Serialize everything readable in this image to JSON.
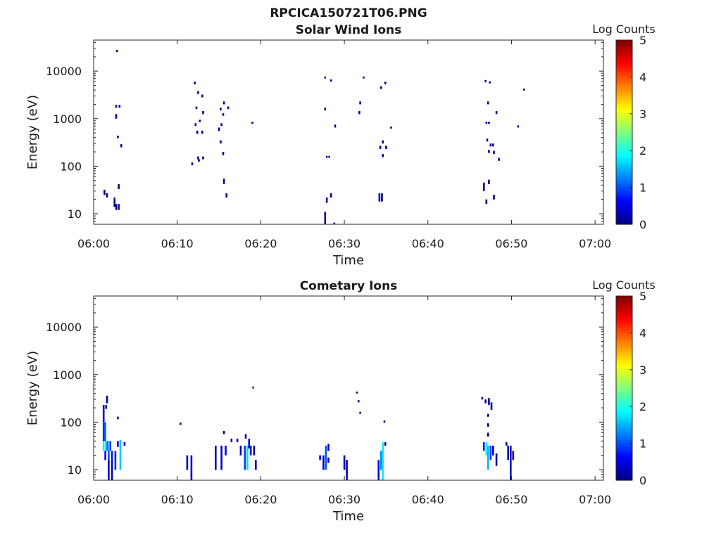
{
  "figure_title": "RPCICA150721T06.PNG",
  "chart_data": [
    {
      "type": "heatmap",
      "title": "Solar Wind Ions",
      "xlabel": "Time",
      "ylabel": "Energy (eV)",
      "y_scale": "log",
      "xlim": [
        "06:00",
        "07:01"
      ],
      "ylim": [
        6,
        45000
      ],
      "x_ticks": [
        "06:00",
        "06:10",
        "06:20",
        "06:30",
        "06:40",
        "06:50",
        "07:00"
      ],
      "y_ticks": [
        "10",
        "100",
        "1000",
        "10000"
      ],
      "colorbar": {
        "label": "Log Counts",
        "range": [
          0,
          5
        ],
        "ticks": [
          "0",
          "1",
          "2",
          "3",
          "4",
          "5"
        ],
        "colormap": "jet"
      },
      "points": [
        {
          "t": 1.3,
          "e0": 25,
          "e1": 32,
          "v": 0.1
        },
        {
          "t": 1.6,
          "e0": 22,
          "e1": 27,
          "v": 0.1
        },
        {
          "t": 2.5,
          "e0": 14,
          "e1": 22,
          "v": 0.1
        },
        {
          "t": 2.7,
          "e0": 12,
          "e1": 16,
          "v": 0.1
        },
        {
          "t": 3.0,
          "e0": 12,
          "e1": 16,
          "v": 0.1
        },
        {
          "t": 3.0,
          "e0": 33,
          "e1": 42,
          "v": 0.1
        },
        {
          "t": 2.8,
          "e0": 25000,
          "e1": 28000,
          "v": 0.1
        },
        {
          "t": 2.7,
          "e0": 1700,
          "e1": 1950,
          "v": 0.1
        },
        {
          "t": 3.1,
          "e0": 1700,
          "e1": 1950,
          "v": 0.1
        },
        {
          "t": 2.7,
          "e0": 1000,
          "e1": 1250,
          "v": 0.1
        },
        {
          "t": 2.9,
          "e0": 390,
          "e1": 440,
          "v": 0.1
        },
        {
          "t": 3.3,
          "e0": 250,
          "e1": 290,
          "v": 0.1
        },
        {
          "t": 11.8,
          "e0": 105,
          "e1": 120,
          "v": 0.1
        },
        {
          "t": 12.1,
          "e0": 5300,
          "e1": 6000,
          "v": 0.1
        },
        {
          "t": 12.5,
          "e0": 3300,
          "e1": 3800,
          "v": 0.1
        },
        {
          "t": 13.0,
          "e0": 2800,
          "e1": 3200,
          "v": 0.1
        },
        {
          "t": 12.3,
          "e0": 1600,
          "e1": 1800,
          "v": 0.1
        },
        {
          "t": 13.1,
          "e0": 1250,
          "e1": 1450,
          "v": 0.1
        },
        {
          "t": 12.2,
          "e0": 700,
          "e1": 800,
          "v": 0.1
        },
        {
          "t": 12.7,
          "e0": 850,
          "e1": 950,
          "v": 0.1
        },
        {
          "t": 12.4,
          "e0": 480,
          "e1": 560,
          "v": 0.1
        },
        {
          "t": 13.0,
          "e0": 480,
          "e1": 560,
          "v": 0.1
        },
        {
          "t": 12.5,
          "e0": 140,
          "e1": 160,
          "v": 0.1
        },
        {
          "t": 12.6,
          "e0": 125,
          "e1": 140,
          "v": 0.1
        },
        {
          "t": 13.1,
          "e0": 140,
          "e1": 160,
          "v": 0.1
        },
        {
          "t": 15.2,
          "e0": 1500,
          "e1": 1700,
          "v": 0.1
        },
        {
          "t": 15.6,
          "e0": 2000,
          "e1": 2300,
          "v": 0.1
        },
        {
          "t": 16.1,
          "e0": 1600,
          "e1": 1800,
          "v": 0.1
        },
        {
          "t": 15.5,
          "e0": 1150,
          "e1": 1300,
          "v": 0.1
        },
        {
          "t": 15.3,
          "e0": 700,
          "e1": 800,
          "v": 0.1
        },
        {
          "t": 15.0,
          "e0": 550,
          "e1": 650,
          "v": 0.1
        },
        {
          "t": 15.2,
          "e0": 300,
          "e1": 350,
          "v": 0.1
        },
        {
          "t": 15.5,
          "e0": 170,
          "e1": 200,
          "v": 0.1
        },
        {
          "t": 15.6,
          "e0": 42,
          "e1": 55,
          "v": 0.1
        },
        {
          "t": 15.9,
          "e0": 22,
          "e1": 27,
          "v": 0.1
        },
        {
          "t": 19.0,
          "e0": 780,
          "e1": 860,
          "v": 0.1
        },
        {
          "t": 27.7,
          "e0": 6,
          "e1": 11,
          "v": 0.1
        },
        {
          "t": 27.9,
          "e0": 17,
          "e1": 22,
          "v": 0.1
        },
        {
          "t": 28.4,
          "e0": 22,
          "e1": 27,
          "v": 0.1
        },
        {
          "t": 28.8,
          "e0": 6,
          "e1": 6.5,
          "v": 0.1
        },
        {
          "t": 27.9,
          "e0": 150,
          "e1": 165,
          "v": 0.1
        },
        {
          "t": 28.2,
          "e0": 150,
          "e1": 165,
          "v": 0.1
        },
        {
          "t": 27.7,
          "e0": 1500,
          "e1": 1700,
          "v": 0.1
        },
        {
          "t": 27.7,
          "e0": 7000,
          "e1": 7700,
          "v": 0.1
        },
        {
          "t": 28.4,
          "e0": 6000,
          "e1": 6700,
          "v": 0.1
        },
        {
          "t": 28.9,
          "e0": 650,
          "e1": 750,
          "v": 0.1
        },
        {
          "t": 32.3,
          "e0": 7000,
          "e1": 7700,
          "v": 0.1
        },
        {
          "t": 31.9,
          "e0": 2000,
          "e1": 2300,
          "v": 0.1
        },
        {
          "t": 31.8,
          "e0": 1250,
          "e1": 1450,
          "v": 0.1
        },
        {
          "t": 34.2,
          "e0": 18,
          "e1": 27,
          "v": 0.1
        },
        {
          "t": 34.5,
          "e0": 18,
          "e1": 27,
          "v": 0.1
        },
        {
          "t": 34.4,
          "e0": 4200,
          "e1": 4800,
          "v": 0.1
        },
        {
          "t": 34.9,
          "e0": 5300,
          "e1": 6000,
          "v": 0.1
        },
        {
          "t": 34.6,
          "e0": 300,
          "e1": 350,
          "v": 0.1
        },
        {
          "t": 34.3,
          "e0": 230,
          "e1": 270,
          "v": 0.1
        },
        {
          "t": 35.0,
          "e0": 230,
          "e1": 270,
          "v": 0.1
        },
        {
          "t": 34.6,
          "e0": 155,
          "e1": 180,
          "v": 0.1
        },
        {
          "t": 35.6,
          "e0": 620,
          "e1": 680,
          "v": 0.1
        },
        {
          "t": 46.7,
          "e0": 30,
          "e1": 45,
          "v": 0.1
        },
        {
          "t": 47.0,
          "e0": 16,
          "e1": 20,
          "v": 0.1
        },
        {
          "t": 47.3,
          "e0": 42,
          "e1": 52,
          "v": 0.1
        },
        {
          "t": 47.9,
          "e0": 20,
          "e1": 25,
          "v": 0.1
        },
        {
          "t": 46.9,
          "e0": 5800,
          "e1": 6500,
          "v": 0.1
        },
        {
          "t": 47.4,
          "e0": 5500,
          "e1": 6100,
          "v": 0.1
        },
        {
          "t": 47.2,
          "e0": 2000,
          "e1": 2300,
          "v": 0.1
        },
        {
          "t": 47.0,
          "e0": 780,
          "e1": 860,
          "v": 0.1
        },
        {
          "t": 47.3,
          "e0": 780,
          "e1": 860,
          "v": 0.1
        },
        {
          "t": 48.2,
          "e0": 1250,
          "e1": 1450,
          "v": 0.1
        },
        {
          "t": 47.1,
          "e0": 330,
          "e1": 380,
          "v": 0.1
        },
        {
          "t": 47.5,
          "e0": 260,
          "e1": 300,
          "v": 0.1
        },
        {
          "t": 47.8,
          "e0": 260,
          "e1": 300,
          "v": 0.1
        },
        {
          "t": 47.3,
          "e0": 190,
          "e1": 220,
          "v": 0.1
        },
        {
          "t": 47.9,
          "e0": 180,
          "e1": 210,
          "v": 0.1
        },
        {
          "t": 48.5,
          "e0": 130,
          "e1": 150,
          "v": 0.1
        },
        {
          "t": 50.8,
          "e0": 650,
          "e1": 720,
          "v": 0.1
        },
        {
          "t": 51.5,
          "e0": 3900,
          "e1": 4300,
          "v": 0.1
        }
      ]
    },
    {
      "type": "heatmap",
      "title": "Cometary Ions",
      "xlabel": "Time",
      "ylabel": "Energy (eV)",
      "y_scale": "log",
      "xlim": [
        "06:00",
        "07:01"
      ],
      "ylim": [
        6,
        45000
      ],
      "x_ticks": [
        "06:00",
        "06:10",
        "06:20",
        "06:30",
        "06:40",
        "06:50",
        "07:00"
      ],
      "y_ticks": [
        "10",
        "100",
        "1000",
        "10000"
      ],
      "colorbar": {
        "label": "Log Counts",
        "range": [
          0,
          5
        ],
        "ticks": [
          "0",
          "1",
          "2",
          "3",
          "4",
          "5"
        ],
        "colormap": "jet"
      },
      "points": [
        {
          "t": 1.2,
          "e0": 190,
          "e1": 230,
          "v": 0.2
        },
        {
          "t": 1.5,
          "e0": 190,
          "e1": 230,
          "v": 0.2
        },
        {
          "t": 1.6,
          "e0": 250,
          "e1": 360,
          "v": 0.2
        },
        {
          "t": 1.2,
          "e0": 100,
          "e1": 190,
          "v": 0.5
        },
        {
          "t": 1.2,
          "e0": 40,
          "e1": 100,
          "v": 0.8
        },
        {
          "t": 1.4,
          "e0": 40,
          "e1": 100,
          "v": 1.2
        },
        {
          "t": 1.2,
          "e0": 25,
          "e1": 40,
          "v": 1.8
        },
        {
          "t": 1.5,
          "e0": 25,
          "e1": 40,
          "v": 1.5
        },
        {
          "t": 1.7,
          "e0": 25,
          "e1": 40,
          "v": 1.2
        },
        {
          "t": 2.0,
          "e0": 25,
          "e1": 40,
          "v": 0.9
        },
        {
          "t": 1.4,
          "e0": 16,
          "e1": 25,
          "v": 0.6
        },
        {
          "t": 1.8,
          "e0": 16,
          "e1": 25,
          "v": 1.0
        },
        {
          "t": 2.2,
          "e0": 16,
          "e1": 25,
          "v": 0.7
        },
        {
          "t": 1.8,
          "e0": 6,
          "e1": 16,
          "v": 0.4
        },
        {
          "t": 2.2,
          "e0": 6,
          "e1": 16,
          "v": 0.3
        },
        {
          "t": 2.6,
          "e0": 10,
          "e1": 25,
          "v": 0.8
        },
        {
          "t": 2.9,
          "e0": 30,
          "e1": 40,
          "v": 0.5
        },
        {
          "t": 3.2,
          "e0": 10,
          "e1": 42,
          "v": 1.6
        },
        {
          "t": 3.7,
          "e0": 32,
          "e1": 38,
          "v": 0.3
        },
        {
          "t": 2.9,
          "e0": 115,
          "e1": 130,
          "v": 0.1
        },
        {
          "t": 10.4,
          "e0": 88,
          "e1": 98,
          "v": 0.1
        },
        {
          "t": 11.2,
          "e0": 10,
          "e1": 20,
          "v": 0.2
        },
        {
          "t": 11.7,
          "e0": 6,
          "e1": 20,
          "v": 0.4
        },
        {
          "t": 14.6,
          "e0": 10,
          "e1": 32,
          "v": 0.3
        },
        {
          "t": 15.3,
          "e0": 10,
          "e1": 32,
          "v": 0.4
        },
        {
          "t": 15.8,
          "e0": 20,
          "e1": 32,
          "v": 0.6
        },
        {
          "t": 15.6,
          "e0": 56,
          "e1": 65,
          "v": 0.1
        },
        {
          "t": 16.5,
          "e0": 38,
          "e1": 45,
          "v": 0.2
        },
        {
          "t": 17.2,
          "e0": 38,
          "e1": 45,
          "v": 0.2
        },
        {
          "t": 17.6,
          "e0": 20,
          "e1": 32,
          "v": 0.3
        },
        {
          "t": 18.1,
          "e0": 10,
          "e1": 32,
          "v": 0.9
        },
        {
          "t": 18.4,
          "e0": 10,
          "e1": 32,
          "v": 1.7
        },
        {
          "t": 18.6,
          "e0": 28,
          "e1": 45,
          "v": 0.5
        },
        {
          "t": 18.8,
          "e0": 20,
          "e1": 32,
          "v": 0.3
        },
        {
          "t": 19.2,
          "e0": 20,
          "e1": 32,
          "v": 0.2
        },
        {
          "t": 18.2,
          "e0": 45,
          "e1": 56,
          "v": 0.2
        },
        {
          "t": 19.4,
          "e0": 10,
          "e1": 16,
          "v": 0.2
        },
        {
          "t": 19.1,
          "e0": 510,
          "e1": 560,
          "v": 0.1
        },
        {
          "t": 27.1,
          "e0": 16,
          "e1": 20,
          "v": 0.3
        },
        {
          "t": 27.5,
          "e0": 10,
          "e1": 20,
          "v": 0.4
        },
        {
          "t": 27.8,
          "e0": 10,
          "e1": 32,
          "v": 1.0
        },
        {
          "t": 28.1,
          "e0": 25,
          "e1": 35,
          "v": 0.4
        },
        {
          "t": 28.1,
          "e0": 14,
          "e1": 18,
          "v": 0.2
        },
        {
          "t": 30.0,
          "e0": 10,
          "e1": 20,
          "v": 0.2
        },
        {
          "t": 30.3,
          "e0": 6,
          "e1": 16,
          "v": 0.3
        },
        {
          "t": 31.5,
          "e0": 400,
          "e1": 440,
          "v": 0.1
        },
        {
          "t": 31.7,
          "e0": 260,
          "e1": 290,
          "v": 0.1
        },
        {
          "t": 31.9,
          "e0": 150,
          "e1": 165,
          "v": 0.1
        },
        {
          "t": 34.1,
          "e0": 6,
          "e1": 16,
          "v": 0.5
        },
        {
          "t": 34.4,
          "e0": 10,
          "e1": 25,
          "v": 1.3
        },
        {
          "t": 34.6,
          "e0": 6,
          "e1": 38,
          "v": 1.8
        },
        {
          "t": 34.9,
          "e0": 32,
          "e1": 38,
          "v": 0.2
        },
        {
          "t": 34.8,
          "e0": 98,
          "e1": 108,
          "v": 0.1
        },
        {
          "t": 46.5,
          "e0": 300,
          "e1": 340,
          "v": 0.1
        },
        {
          "t": 46.9,
          "e0": 250,
          "e1": 300,
          "v": 0.1
        },
        {
          "t": 47.3,
          "e0": 230,
          "e1": 320,
          "v": 0.1
        },
        {
          "t": 47.6,
          "e0": 180,
          "e1": 260,
          "v": 0.2
        },
        {
          "t": 47.2,
          "e0": 130,
          "e1": 150,
          "v": 0.1
        },
        {
          "t": 47.2,
          "e0": 80,
          "e1": 95,
          "v": 0.1
        },
        {
          "t": 47.2,
          "e0": 50,
          "e1": 60,
          "v": 0.1
        },
        {
          "t": 46.7,
          "e0": 25,
          "e1": 38,
          "v": 0.8
        },
        {
          "t": 47.0,
          "e0": 20,
          "e1": 38,
          "v": 1.9
        },
        {
          "t": 47.2,
          "e0": 10,
          "e1": 32,
          "v": 1.5
        },
        {
          "t": 47.5,
          "e0": 16,
          "e1": 32,
          "v": 0.9
        },
        {
          "t": 47.8,
          "e0": 20,
          "e1": 32,
          "v": 0.5
        },
        {
          "t": 48.2,
          "e0": 12,
          "e1": 22,
          "v": 0.2
        },
        {
          "t": 49.4,
          "e0": 32,
          "e1": 38,
          "v": 0.1
        },
        {
          "t": 49.6,
          "e0": 16,
          "e1": 32,
          "v": 0.2
        },
        {
          "t": 49.9,
          "e0": 6,
          "e1": 32,
          "v": 0.3
        },
        {
          "t": 50.2,
          "e0": 16,
          "e1": 25,
          "v": 0.2
        }
      ]
    }
  ]
}
